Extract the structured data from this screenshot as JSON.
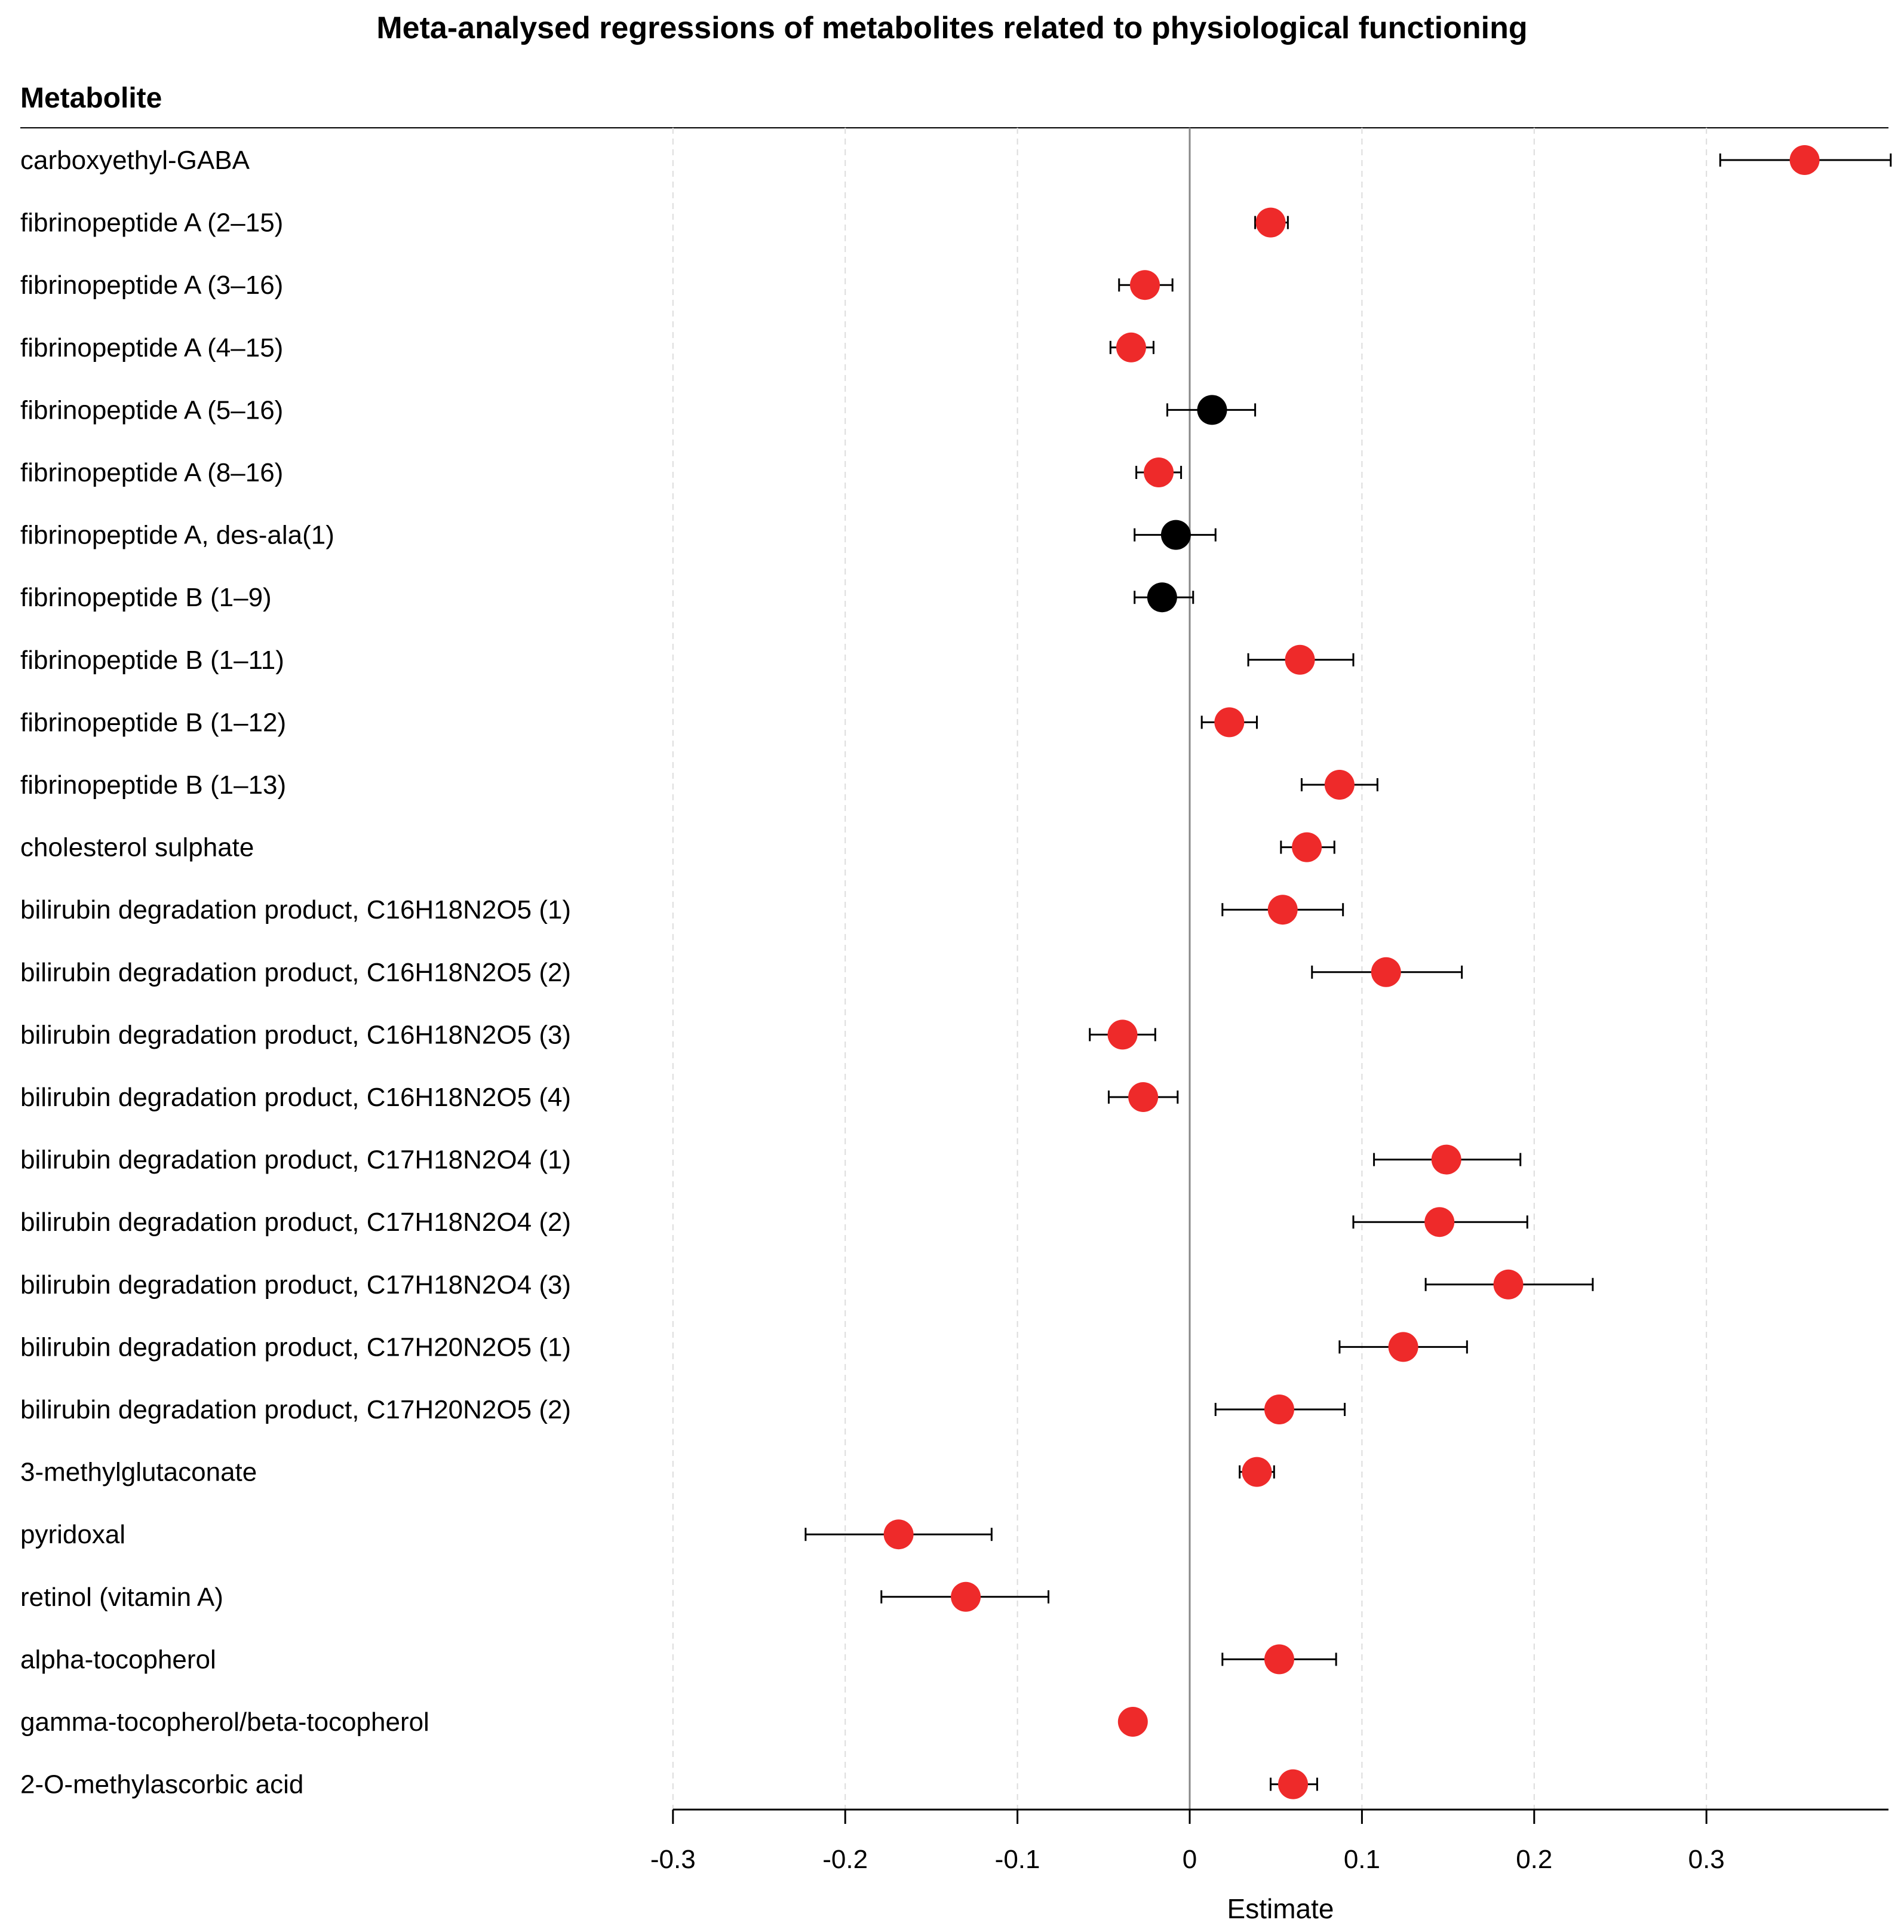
{
  "chart_data": {
    "type": "forest",
    "title": "Meta-analysed regressions of metabolites related to physiological functioning",
    "column_header": "Metabolite",
    "xlabel": "Estimate",
    "xlim": [
      -0.3,
      0.4
    ],
    "xticks": [
      -0.3,
      -0.2,
      -0.1,
      0,
      0.1,
      0.2,
      0.3
    ],
    "xtick_labels": [
      "-0.3",
      "-0.2",
      "-0.1",
      "0",
      "0.1",
      "0.2",
      "0.3"
    ],
    "grid": "vertical dashed",
    "colors": {
      "significant": "#ee2a2a",
      "not_significant": "#000000"
    },
    "rows": [
      {
        "label": "carboxyethyl-GABA",
        "estimate": 0.357,
        "ci_low": 0.308,
        "ci_high": 0.407,
        "significant": true
      },
      {
        "label": "fibrinopeptide A (2–15)",
        "estimate": 0.047,
        "ci_low": 0.038,
        "ci_high": 0.057,
        "significant": true
      },
      {
        "label": "fibrinopeptide A (3–16)",
        "estimate": -0.026,
        "ci_low": -0.041,
        "ci_high": -0.01,
        "significant": true
      },
      {
        "label": "fibrinopeptide A (4–15)",
        "estimate": -0.034,
        "ci_low": -0.046,
        "ci_high": -0.021,
        "significant": true
      },
      {
        "label": "fibrinopeptide A (5–16)",
        "estimate": 0.013,
        "ci_low": -0.013,
        "ci_high": 0.038,
        "significant": false
      },
      {
        "label": "fibrinopeptide A (8–16)",
        "estimate": -0.018,
        "ci_low": -0.031,
        "ci_high": -0.005,
        "significant": true
      },
      {
        "label": "fibrinopeptide A, des-ala(1)",
        "estimate": -0.008,
        "ci_low": -0.032,
        "ci_high": 0.015,
        "significant": false
      },
      {
        "label": "fibrinopeptide B (1–9)",
        "estimate": -0.016,
        "ci_low": -0.032,
        "ci_high": 0.002,
        "significant": false
      },
      {
        "label": "fibrinopeptide B (1–11)",
        "estimate": 0.064,
        "ci_low": 0.034,
        "ci_high": 0.095,
        "significant": true
      },
      {
        "label": "fibrinopeptide B (1–12)",
        "estimate": 0.023,
        "ci_low": 0.007,
        "ci_high": 0.039,
        "significant": true
      },
      {
        "label": "fibrinopeptide B (1–13)",
        "estimate": 0.087,
        "ci_low": 0.065,
        "ci_high": 0.109,
        "significant": true
      },
      {
        "label": "cholesterol sulphate",
        "estimate": 0.068,
        "ci_low": 0.053,
        "ci_high": 0.084,
        "significant": true
      },
      {
        "label": "bilirubin degradation product, C16H18N2O5 (1)",
        "estimate": 0.054,
        "ci_low": 0.019,
        "ci_high": 0.089,
        "significant": true
      },
      {
        "label": "bilirubin degradation product, C16H18N2O5 (2)",
        "estimate": 0.114,
        "ci_low": 0.071,
        "ci_high": 0.158,
        "significant": true
      },
      {
        "label": "bilirubin degradation product, C16H18N2O5 (3)",
        "estimate": -0.039,
        "ci_low": -0.058,
        "ci_high": -0.02,
        "significant": true
      },
      {
        "label": "bilirubin degradation product, C16H18N2O5 (4)",
        "estimate": -0.027,
        "ci_low": -0.047,
        "ci_high": -0.007,
        "significant": true
      },
      {
        "label": "bilirubin degradation product, C17H18N2O4 (1)",
        "estimate": 0.149,
        "ci_low": 0.107,
        "ci_high": 0.192,
        "significant": true
      },
      {
        "label": "bilirubin degradation product, C17H18N2O4 (2)",
        "estimate": 0.145,
        "ci_low": 0.095,
        "ci_high": 0.196,
        "significant": true
      },
      {
        "label": "bilirubin degradation product, C17H18N2O4 (3)",
        "estimate": 0.185,
        "ci_low": 0.137,
        "ci_high": 0.234,
        "significant": true
      },
      {
        "label": "bilirubin degradation product, C17H20N2O5 (1)",
        "estimate": 0.124,
        "ci_low": 0.087,
        "ci_high": 0.161,
        "significant": true
      },
      {
        "label": "bilirubin degradation product, C17H20N2O5 (2)",
        "estimate": 0.052,
        "ci_low": 0.015,
        "ci_high": 0.09,
        "significant": true
      },
      {
        "label": "3-methylglutaconate",
        "estimate": 0.039,
        "ci_low": 0.029,
        "ci_high": 0.049,
        "significant": true
      },
      {
        "label": "pyridoxal",
        "estimate": -0.169,
        "ci_low": -0.223,
        "ci_high": -0.115,
        "significant": true
      },
      {
        "label": "retinol (vitamin A)",
        "estimate": -0.13,
        "ci_low": -0.179,
        "ci_high": -0.082,
        "significant": true
      },
      {
        "label": "alpha-tocopherol",
        "estimate": 0.052,
        "ci_low": 0.019,
        "ci_high": 0.085,
        "significant": true
      },
      {
        "label": "gamma-tocopherol/beta-tocopherol",
        "estimate": -0.033,
        "ci_low": -0.033,
        "ci_high": -0.033,
        "significant": true
      },
      {
        "label": "2-O-methylascorbic acid",
        "estimate": 0.06,
        "ci_low": 0.047,
        "ci_high": 0.074,
        "significant": true
      }
    ]
  }
}
